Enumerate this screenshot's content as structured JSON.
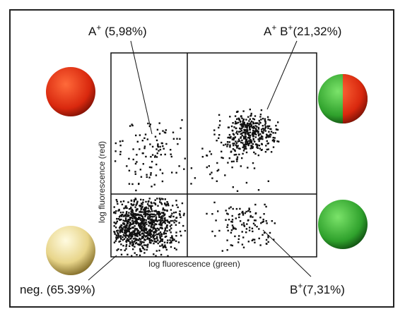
{
  "axes": {
    "x_label": "log fluorescence (green)",
    "y_label": "log fluorescence (red)"
  },
  "quadrants": [
    {
      "parts": [
        {
          "text": "A"
        },
        {
          "sup": "+"
        },
        {
          "text": " (5,98%)"
        }
      ]
    },
    {
      "parts": [
        {
          "text": "A"
        },
        {
          "sup": "+"
        },
        {
          "text": " B"
        },
        {
          "sup": "+"
        },
        {
          "text": "(21,32%)"
        }
      ]
    },
    {
      "parts": [
        {
          "text": "neg. (65.39%)"
        }
      ]
    },
    {
      "parts": [
        {
          "text": "B"
        },
        {
          "sup": "+"
        },
        {
          "text": "(7,31%)"
        }
      ]
    }
  ]
}
